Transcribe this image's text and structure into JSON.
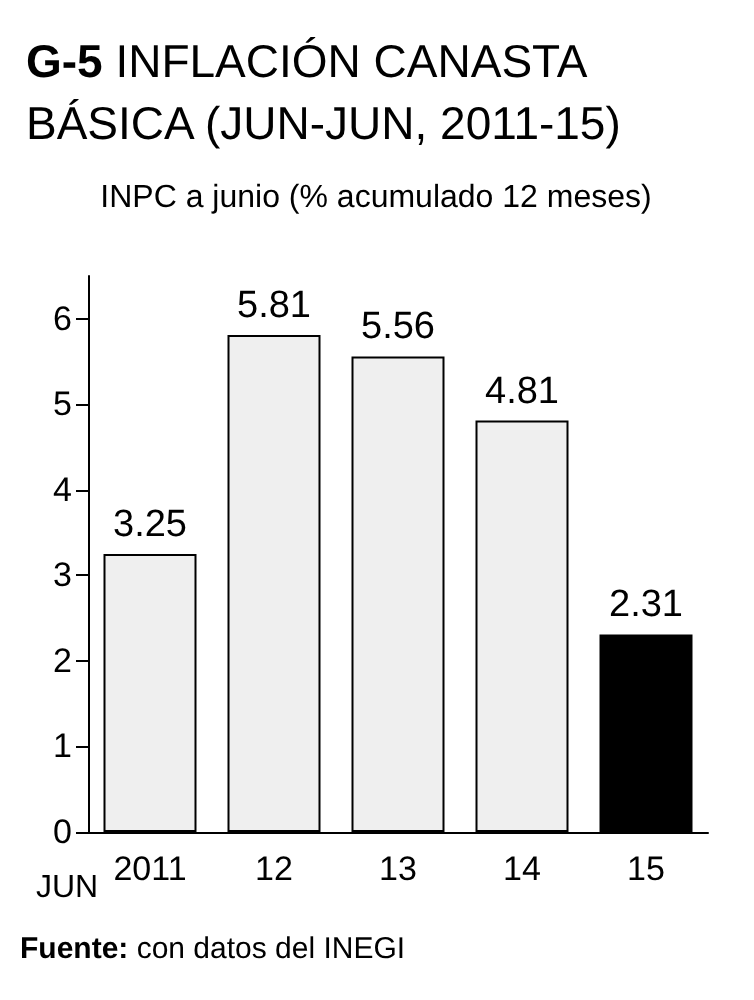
{
  "chart_data": {
    "type": "bar",
    "title": "G-5 INFLACIÓN CANASTA BÁSICA (JUN-JUN, 2011-15)",
    "subtitle": "INPC a junio (% acumulado 12 meses)",
    "xlabel": "JUN",
    "categories": [
      "2011",
      "12",
      "13",
      "14",
      "15"
    ],
    "values": [
      3.25,
      5.81,
      5.56,
      4.81,
      2.31
    ],
    "colors": [
      "#efefef",
      "#efefef",
      "#efefef",
      "#efefef",
      "#000000"
    ],
    "ylim": [
      0,
      6.5
    ],
    "yticks": [
      0,
      1,
      2,
      3,
      4,
      5,
      6
    ],
    "grid": false,
    "data_labels": true,
    "annotations": [
      "Fuente: con datos del INEGI"
    ]
  }
}
